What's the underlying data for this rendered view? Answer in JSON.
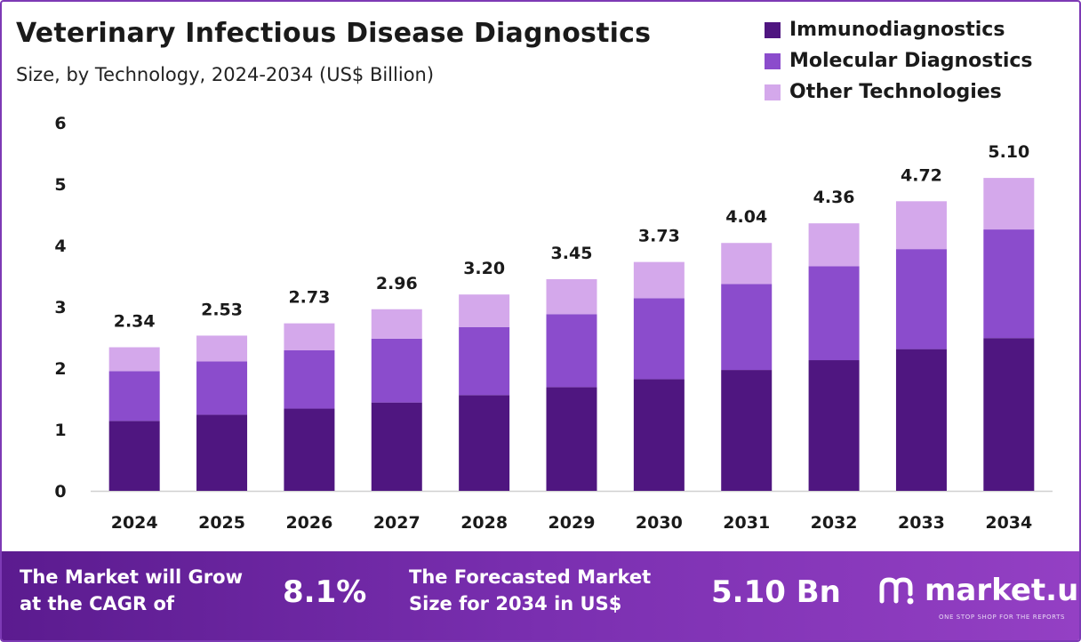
{
  "header": {
    "title": "Veterinary Infectious Disease Diagnostics",
    "subtitle": "Size, by Technology, 2024-2034 (US$ Billion)"
  },
  "legend": [
    {
      "label": "Immunodiagnostics",
      "color": "#4f1680"
    },
    {
      "label": "Molecular Diagnostics",
      "color": "#8b4ccc"
    },
    {
      "label": "Other Technologies",
      "color": "#d4a8eb"
    }
  ],
  "chart_data": {
    "type": "bar",
    "stacked": true,
    "title": "Veterinary Infectious Disease Diagnostics",
    "subtitle": "Size, by Technology, 2024-2034 (US$ Billion)",
    "categories": [
      "2024",
      "2025",
      "2026",
      "2027",
      "2028",
      "2029",
      "2030",
      "2031",
      "2032",
      "2033",
      "2034"
    ],
    "series": [
      {
        "name": "Immunodiagnostics",
        "color": "#4f1680",
        "values": [
          1.14,
          1.24,
          1.34,
          1.44,
          1.56,
          1.69,
          1.82,
          1.97,
          2.13,
          2.31,
          2.49
        ]
      },
      {
        "name": "Molecular Diagnostics",
        "color": "#8b4ccc",
        "values": [
          0.81,
          0.87,
          0.95,
          1.04,
          1.11,
          1.19,
          1.32,
          1.4,
          1.53,
          1.63,
          1.77
        ]
      },
      {
        "name": "Other Technologies",
        "color": "#d4a8eb",
        "values": [
          0.39,
          0.42,
          0.44,
          0.48,
          0.53,
          0.57,
          0.59,
          0.67,
          0.7,
          0.78,
          0.84
        ]
      }
    ],
    "totals": [
      "2.34",
      "2.53",
      "2.73",
      "2.96",
      "3.20",
      "3.45",
      "3.73",
      "4.04",
      "4.36",
      "4.72",
      "5.10"
    ],
    "y_ticks": [
      "0",
      "1",
      "2",
      "3",
      "4",
      "5",
      "6"
    ],
    "ylim": [
      0,
      6
    ],
    "grid": false,
    "legend_position": "top-right"
  },
  "footer": {
    "cagr_label": "The Market will Grow\nat the CAGR of",
    "cagr_value": "8.1%",
    "forecast_label": "The Forecasted Market\nSize for 2034 in US$",
    "forecast_value": "5.10 Bn",
    "brand_name": "market.us",
    "brand_tagline": "ONE STOP SHOP FOR THE REPORTS"
  }
}
